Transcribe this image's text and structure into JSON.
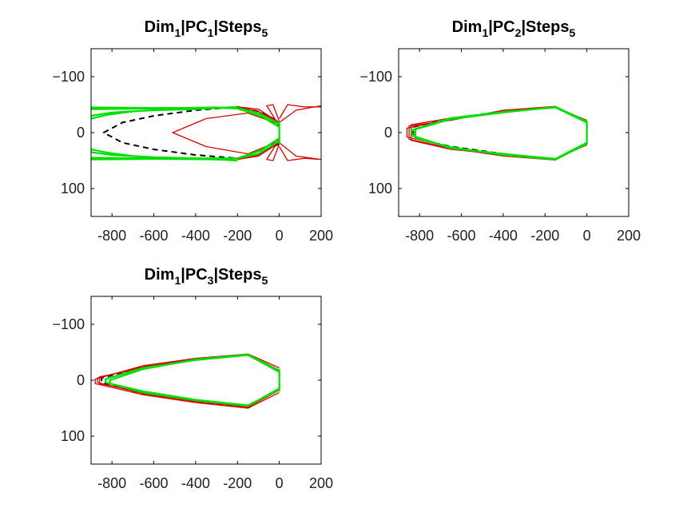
{
  "figure": {
    "background": "#ffffff"
  },
  "colors": {
    "red": "#dd0000",
    "green": "#00e000",
    "dashed": "#000000",
    "axis": "#000000"
  },
  "chart_data": [
    {
      "type": "line",
      "title": "Dim1|PC1|Steps5",
      "title_parts": {
        "a": "Dim",
        "a_sub": "1",
        "b": "|PC",
        "b_sub": "1",
        "c": "|Steps",
        "c_sub": "5"
      },
      "xlim": [
        -900,
        200
      ],
      "ylim": [
        -150,
        150
      ],
      "y_reversed": true,
      "xticks": [
        -800,
        -600,
        -400,
        -200,
        0,
        200
      ],
      "xtick_labels": [
        "-800",
        "-600",
        "-400",
        "-200",
        "0",
        "200"
      ],
      "yticks": [
        -100,
        0,
        100
      ],
      "ytick_labels": [
        "−100",
        "0",
        "100"
      ],
      "grid": false,
      "series": [
        {
          "color": "dashed",
          "style": "dashed",
          "values": [
            [
              0,
              20
            ],
            [
              -100,
              38
            ],
            [
              -200,
              46
            ],
            [
              -400,
              40
            ],
            [
              -600,
              30
            ],
            [
              -750,
              18
            ],
            [
              -840,
              0
            ],
            [
              -750,
              -18
            ],
            [
              -600,
              -30
            ],
            [
              -400,
              -40
            ],
            [
              -200,
              -46
            ],
            [
              -100,
              -38
            ],
            [
              0,
              -20
            ]
          ]
        },
        {
          "color": "red",
          "values": [
            [
              0,
              -15
            ],
            [
              -150,
              -35
            ],
            [
              -350,
              -25
            ],
            [
              -510,
              0
            ],
            [
              -350,
              25
            ],
            [
              -150,
              38
            ],
            [
              0,
              15
            ]
          ]
        },
        {
          "color": "red",
          "values": [
            [
              0,
              -18
            ],
            [
              -100,
              -42
            ],
            [
              -200,
              -46
            ],
            [
              -100,
              -38
            ],
            [
              0,
              -18
            ],
            [
              80,
              -40
            ],
            [
              200,
              -48
            ]
          ]
        },
        {
          "color": "red",
          "values": [
            [
              0,
              18
            ],
            [
              -100,
              42
            ],
            [
              -200,
              48
            ],
            [
              -100,
              40
            ],
            [
              0,
              18
            ],
            [
              80,
              42
            ],
            [
              200,
              48
            ]
          ]
        },
        {
          "color": "red",
          "values": [
            [
              0,
              -20
            ],
            [
              -30,
              -50
            ],
            [
              -60,
              -48
            ],
            [
              -30,
              -30
            ],
            [
              0,
              -10
            ]
          ]
        },
        {
          "color": "red",
          "values": [
            [
              0,
              20
            ],
            [
              -30,
              50
            ],
            [
              -60,
              48
            ],
            [
              -30,
              30
            ],
            [
              0,
              10
            ]
          ]
        },
        {
          "color": "red",
          "values": [
            [
              0,
              -25
            ],
            [
              40,
              -50
            ],
            [
              120,
              -46
            ],
            [
              200,
              -46
            ]
          ]
        },
        {
          "color": "red",
          "values": [
            [
              0,
              25
            ],
            [
              40,
              50
            ],
            [
              120,
              46
            ],
            [
              200,
              48
            ]
          ]
        },
        {
          "color": "green",
          "values": [
            [
              -900,
              -45
            ],
            [
              -600,
              -44
            ],
            [
              -400,
              -44
            ],
            [
              -200,
              -44
            ],
            [
              -100,
              -35
            ],
            [
              0,
              -15
            ]
          ]
        },
        {
          "color": "green",
          "values": [
            [
              -900,
              -42
            ],
            [
              -600,
              -43
            ],
            [
              -300,
              -45
            ],
            [
              -200,
              -43
            ],
            [
              -90,
              -30
            ],
            [
              0,
              -10
            ]
          ]
        },
        {
          "color": "green",
          "values": [
            [
              -900,
              -30
            ],
            [
              -800,
              -36
            ],
            [
              -600,
              -40
            ],
            [
              -400,
              -42
            ],
            [
              -200,
              -46
            ]
          ]
        },
        {
          "color": "green",
          "values": [
            [
              -900,
              -25
            ],
            [
              -820,
              -32
            ],
            [
              -700,
              -38
            ]
          ]
        },
        {
          "color": "green",
          "values": [
            [
              -900,
              45
            ],
            [
              -600,
              46
            ],
            [
              -400,
              46
            ],
            [
              -200,
              46
            ],
            [
              -100,
              38
            ],
            [
              0,
              15
            ]
          ]
        },
        {
          "color": "green",
          "values": [
            [
              -900,
              48
            ],
            [
              -600,
              47
            ],
            [
              -300,
              48
            ],
            [
              -200,
              46
            ],
            [
              -90,
              32
            ],
            [
              0,
              10
            ]
          ]
        },
        {
          "color": "green",
          "values": [
            [
              -900,
              35
            ],
            [
              -800,
              40
            ],
            [
              -600,
              44
            ],
            [
              -400,
              46
            ],
            [
              -200,
              50
            ]
          ]
        },
        {
          "color": "green",
          "values": [
            [
              -900,
              30
            ],
            [
              -820,
              36
            ],
            [
              -700,
              42
            ]
          ]
        },
        {
          "color": "green",
          "values": [
            [
              0,
              -20
            ],
            [
              0,
              20
            ]
          ]
        }
      ]
    },
    {
      "type": "line",
      "title": "Dim1|PC2|Steps5",
      "title_parts": {
        "a": "Dim",
        "a_sub": "1",
        "b": "|PC",
        "b_sub": "2",
        "c": "|Steps",
        "c_sub": "5"
      },
      "xlim": [
        -900,
        200
      ],
      "ylim": [
        -150,
        150
      ],
      "y_reversed": true,
      "xticks": [
        -800,
        -600,
        -400,
        -200,
        0,
        200
      ],
      "xtick_labels": [
        "-800",
        "-600",
        "-400",
        "-200",
        "0",
        "200"
      ],
      "yticks": [
        -100,
        0,
        100
      ],
      "ytick_labels": [
        "−100",
        "0",
        "100"
      ],
      "grid": false,
      "series": [
        {
          "color": "dashed",
          "style": "dashed",
          "values": [
            [
              0,
              -20
            ],
            [
              -150,
              -45
            ],
            [
              -400,
              -38
            ],
            [
              -650,
              -25
            ],
            [
              -830,
              -10
            ],
            [
              -830,
              10
            ],
            [
              -650,
              25
            ],
            [
              -400,
              38
            ],
            [
              -150,
              48
            ],
            [
              0,
              20
            ],
            [
              0,
              -20
            ]
          ]
        },
        {
          "color": "red",
          "values": [
            [
              0,
              -20
            ],
            [
              -150,
              -46
            ],
            [
              -400,
              -38
            ],
            [
              -650,
              -24
            ],
            [
              -860,
              -8
            ],
            [
              -860,
              8
            ],
            [
              -650,
              26
            ],
            [
              -400,
              40
            ],
            [
              -150,
              48
            ],
            [
              0,
              20
            ]
          ]
        },
        {
          "color": "red",
          "values": [
            [
              0,
              -18
            ],
            [
              -150,
              -47
            ],
            [
              -400,
              -40
            ],
            [
              -650,
              -22
            ],
            [
              -850,
              -12
            ],
            [
              -850,
              12
            ],
            [
              -650,
              28
            ],
            [
              -400,
              42
            ],
            [
              -150,
              49
            ],
            [
              0,
              18
            ]
          ]
        },
        {
          "color": "red",
          "values": [
            [
              0,
              -22
            ],
            [
              -150,
              -45
            ],
            [
              -400,
              -37
            ],
            [
              -650,
              -26
            ],
            [
              -840,
              -14
            ],
            [
              -840,
              14
            ],
            [
              -650,
              30
            ],
            [
              -400,
              39
            ],
            [
              -150,
              47
            ],
            [
              0,
              22
            ]
          ]
        },
        {
          "color": "green",
          "values": [
            [
              0,
              -18
            ],
            [
              -150,
              -45
            ],
            [
              -400,
              -37
            ],
            [
              -650,
              -26
            ],
            [
              -840,
              -4
            ],
            [
              -830,
              6
            ],
            [
              -650,
              28
            ],
            [
              -400,
              38
            ],
            [
              -150,
              47
            ],
            [
              0,
              18
            ]
          ]
        },
        {
          "color": "green",
          "values": [
            [
              0,
              -20
            ],
            [
              -150,
              -46
            ],
            [
              -400,
              -36
            ],
            [
              -650,
              -24
            ],
            [
              -820,
              -6
            ],
            [
              -820,
              10
            ],
            [
              -650,
              26
            ],
            [
              -400,
              40
            ],
            [
              -150,
              48
            ],
            [
              0,
              20
            ]
          ]
        },
        {
          "color": "green",
          "values": [
            [
              0,
              -20
            ],
            [
              0,
              20
            ]
          ]
        }
      ]
    },
    {
      "type": "line",
      "title": "Dim1|PC3|Steps5",
      "title_parts": {
        "a": "Dim",
        "a_sub": "1",
        "b": "|PC",
        "b_sub": "3",
        "c": "|Steps",
        "c_sub": "5"
      },
      "xlim": [
        -900,
        200
      ],
      "ylim": [
        -150,
        150
      ],
      "y_reversed": true,
      "xticks": [
        -800,
        -600,
        -400,
        -200,
        0,
        200
      ],
      "xtick_labels": [
        "-800",
        "-600",
        "-400",
        "-200",
        "0",
        "200"
      ],
      "yticks": [
        -100,
        0,
        100
      ],
      "ytick_labels": [
        "−100",
        "0",
        "100"
      ],
      "grid": false,
      "series": [
        {
          "color": "dashed",
          "style": "dashed",
          "values": [
            [
              0,
              -15
            ],
            [
              -150,
              -46
            ],
            [
              -400,
              -38
            ],
            [
              -650,
              -24
            ],
            [
              -850,
              -4
            ],
            [
              -850,
              4
            ],
            [
              -650,
              24
            ],
            [
              -400,
              38
            ],
            [
              -150,
              48
            ],
            [
              0,
              15
            ],
            [
              0,
              -15
            ]
          ]
        },
        {
          "color": "red",
          "values": [
            [
              0,
              -18
            ],
            [
              -150,
              -46
            ],
            [
              -400,
              -38
            ],
            [
              -650,
              -24
            ],
            [
              -870,
              -4
            ],
            [
              -870,
              4
            ],
            [
              -650,
              24
            ],
            [
              -400,
              38
            ],
            [
              -150,
              48
            ],
            [
              0,
              18
            ]
          ]
        },
        {
          "color": "red",
          "values": [
            [
              0,
              -22
            ],
            [
              -150,
              -47
            ],
            [
              -400,
              -39
            ],
            [
              -650,
              -26
            ],
            [
              -880,
              -2
            ],
            [
              -880,
              6
            ],
            [
              -650,
              26
            ],
            [
              -400,
              40
            ],
            [
              -150,
              50
            ],
            [
              0,
              22
            ]
          ]
        },
        {
          "color": "red",
          "values": [
            [
              0,
              -14
            ],
            [
              -150,
              -45
            ],
            [
              -400,
              -37
            ],
            [
              -650,
              -22
            ],
            [
              -860,
              -6
            ],
            [
              -860,
              6
            ],
            [
              -650,
              22
            ],
            [
              -400,
              36
            ],
            [
              -150,
              46
            ],
            [
              0,
              14
            ]
          ]
        },
        {
          "color": "green",
          "values": [
            [
              0,
              -15
            ],
            [
              -150,
              -45
            ],
            [
              -400,
              -36
            ],
            [
              -650,
              -22
            ],
            [
              -830,
              -2
            ],
            [
              -830,
              4
            ],
            [
              -650,
              22
            ],
            [
              -400,
              36
            ],
            [
              -150,
              46
            ],
            [
              0,
              15
            ]
          ]
        },
        {
          "color": "green",
          "values": [
            [
              0,
              -17
            ],
            [
              -150,
              -46
            ],
            [
              -400,
              -37
            ],
            [
              -650,
              -20
            ],
            [
              -810,
              0
            ],
            [
              -810,
              6
            ],
            [
              -650,
              20
            ],
            [
              -400,
              35
            ],
            [
              -150,
              45
            ],
            [
              0,
              17
            ]
          ]
        },
        {
          "color": "green",
          "values": [
            [
              0,
              -20
            ],
            [
              0,
              20
            ]
          ]
        }
      ]
    }
  ]
}
